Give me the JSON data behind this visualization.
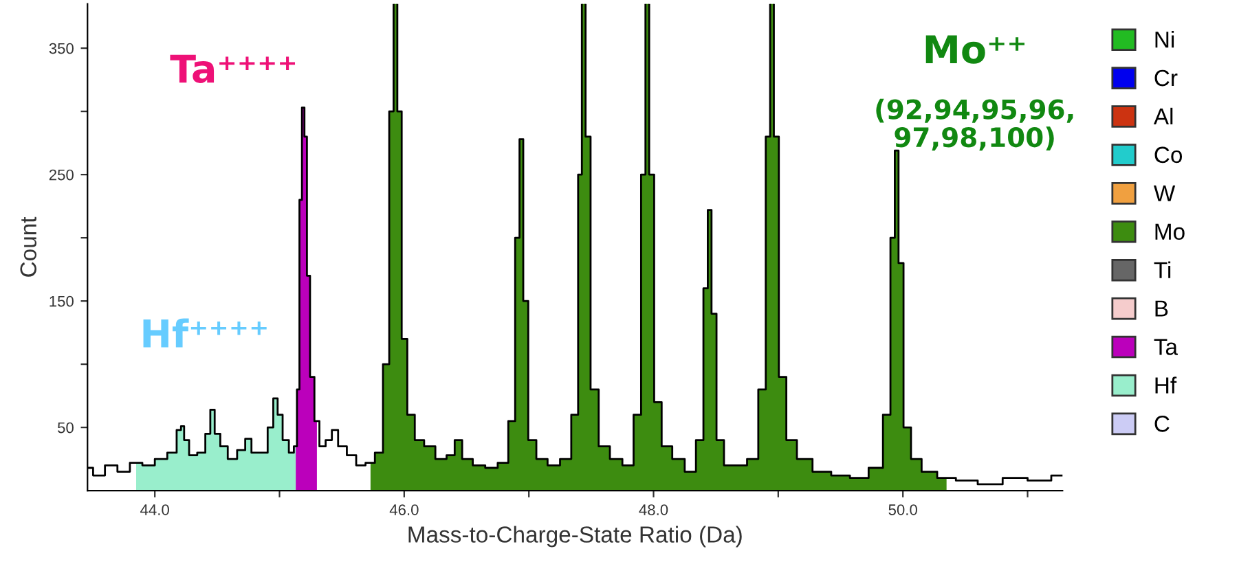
{
  "chart_data": {
    "type": "step",
    "xlabel": "Mass-to-Charge-State Ratio (Da)",
    "ylabel": "Count",
    "xlim": [
      43.46,
      51.28
    ],
    "xticks": [
      {
        "value": 44,
        "label": "44.0"
      },
      {
        "value": 45,
        "label": null
      },
      {
        "value": 46,
        "label": "46.0"
      },
      {
        "value": 47,
        "label": null
      },
      {
        "value": 48,
        "label": "48.0"
      },
      {
        "value": 49,
        "label": null
      },
      {
        "value": 50,
        "label": "50.0"
      },
      {
        "value": 51,
        "label": null
      }
    ],
    "ylim": [
      0,
      385
    ],
    "yticks": [
      50,
      {
        "value": 100,
        "label": null
      },
      150,
      {
        "value": 200,
        "label": null
      },
      250,
      {
        "value": 300,
        "label": null
      },
      350
    ],
    "grid": false,
    "legend": "right",
    "annotations": [
      "Ta⁺⁺⁺⁺",
      "Hf⁺⁺⁺⁺",
      "Mo⁺⁺",
      "(92,94,95,96,\n97,98,100)"
    ],
    "series": [
      {
        "color": "#000000",
        "x": [
          43.46,
          43.55,
          43.65,
          43.75,
          43.85,
          43.95,
          44.05,
          44.15,
          44.2,
          44.22,
          44.25,
          44.3,
          44.38,
          44.43,
          44.46,
          44.5,
          44.55,
          44.62,
          44.7,
          44.75,
          44.8,
          44.88,
          44.93,
          44.97,
          45.0,
          45.05,
          45.1,
          45.13,
          45.15,
          45.17,
          45.19,
          45.21,
          45.23,
          45.26,
          45.3,
          45.34,
          45.4,
          45.44,
          45.5,
          45.58,
          45.65,
          45.73,
          45.8,
          45.86,
          45.9,
          45.93,
          45.96,
          46.0,
          46.05,
          46.12,
          46.2,
          46.3,
          46.38,
          46.43,
          46.5,
          46.6,
          46.7,
          46.8,
          46.87,
          46.91,
          46.94,
          46.97,
          47.02,
          47.1,
          47.2,
          47.3,
          47.38,
          47.41,
          47.44,
          47.47,
          47.52,
          47.6,
          47.7,
          47.8,
          47.88,
          47.92,
          47.95,
          47.98,
          48.03,
          48.1,
          48.2,
          48.3,
          48.38,
          48.42,
          48.45,
          48.48,
          48.53,
          48.6,
          48.7,
          48.8,
          48.88,
          48.92,
          48.95,
          48.98,
          49.03,
          49.1,
          49.2,
          49.35,
          49.5,
          49.65,
          49.8,
          49.88,
          49.92,
          49.95,
          49.98,
          50.03,
          50.1,
          50.2,
          50.35,
          50.5,
          50.7,
          50.9,
          51.1,
          51.28
        ],
        "values": [
          18,
          12,
          20,
          15,
          22,
          20,
          25,
          30,
          48,
          51,
          40,
          28,
          30,
          45,
          64,
          45,
          35,
          25,
          32,
          41,
          30,
          30,
          50,
          73,
          60,
          40,
          30,
          35,
          80,
          230,
          303,
          280,
          170,
          90,
          55,
          35,
          40,
          48,
          35,
          28,
          20,
          22,
          30,
          100,
          300,
          null,
          300,
          120,
          60,
          40,
          35,
          25,
          28,
          40,
          25,
          20,
          18,
          22,
          55,
          200,
          278,
          150,
          40,
          25,
          20,
          25,
          60,
          250,
          null,
          280,
          80,
          35,
          25,
          20,
          60,
          250,
          null,
          250,
          70,
          35,
          25,
          15,
          40,
          160,
          222,
          140,
          40,
          20,
          20,
          25,
          80,
          280,
          null,
          280,
          90,
          40,
          25,
          15,
          12,
          10,
          18,
          60,
          200,
          269,
          180,
          50,
          25,
          15,
          10,
          8,
          5,
          10,
          8,
          12
        ]
      },
      {
        "name": "Ni",
        "type": "area",
        "color": "#22bb22"
      },
      {
        "name": "Cr",
        "type": "area",
        "color": "#0000ee"
      },
      {
        "name": "Al",
        "type": "area",
        "color": "#cc3311"
      },
      {
        "name": "Co",
        "type": "area",
        "color": "#22cccc"
      },
      {
        "name": "W",
        "type": "area",
        "color": "#f0a040"
      },
      {
        "name": "Mo",
        "type": "area",
        "color": "#3d8c10",
        "x": [
          45.73,
          45.8,
          45.86,
          45.9,
          45.93,
          45.96,
          46.0,
          46.05,
          46.12,
          46.2,
          46.3,
          46.38,
          46.43,
          46.5,
          46.6,
          46.7,
          46.8,
          46.87,
          46.91,
          46.94,
          46.97,
          47.02,
          47.1,
          47.2,
          47.3,
          47.38,
          47.41,
          47.44,
          47.47,
          47.52,
          47.6,
          47.7,
          47.8,
          47.88,
          47.92,
          47.95,
          47.98,
          48.03,
          48.1,
          48.2,
          48.3,
          48.38,
          48.42,
          48.45,
          48.48,
          48.53,
          48.6,
          48.7,
          48.8,
          48.88,
          48.92,
          48.95,
          48.98,
          49.03,
          49.1,
          49.2,
          49.35,
          49.5,
          49.65,
          49.8,
          49.88,
          49.92,
          49.95,
          49.98,
          50.03,
          50.1,
          50.2,
          50.35
        ],
        "values": [
          22,
          30,
          100,
          300,
          null,
          300,
          120,
          60,
          40,
          35,
          25,
          28,
          40,
          25,
          20,
          18,
          22,
          55,
          200,
          278,
          150,
          40,
          25,
          20,
          25,
          60,
          250,
          null,
          280,
          80,
          35,
          25,
          20,
          60,
          250,
          null,
          250,
          70,
          35,
          25,
          15,
          40,
          160,
          222,
          140,
          40,
          20,
          20,
          25,
          80,
          280,
          null,
          280,
          90,
          40,
          25,
          15,
          12,
          10,
          18,
          60,
          200,
          269,
          180,
          50,
          25,
          15,
          10
        ]
      },
      {
        "name": "Ti",
        "type": "area",
        "color": "#666666"
      },
      {
        "name": "B",
        "type": "area",
        "color": "#f5cccc"
      },
      {
        "name": "Ta",
        "type": "area",
        "color": "#bb00bb",
        "x": [
          45.13,
          45.15,
          45.17,
          45.19,
          45.21,
          45.23,
          45.26,
          45.3
        ],
        "values": [
          35,
          80,
          230,
          303,
          280,
          170,
          90,
          55
        ]
      },
      {
        "name": "Hf",
        "type": "area",
        "color": "#99eecc",
        "x": [
          43.85,
          43.95,
          44.05,
          44.15,
          44.2,
          44.22,
          44.25,
          44.3,
          44.38,
          44.43,
          44.46,
          44.5,
          44.55,
          44.62,
          44.7,
          44.75,
          44.8,
          44.88,
          44.93,
          44.97,
          45.0,
          45.05,
          45.1,
          45.13
        ],
        "values": [
          22,
          20,
          25,
          30,
          48,
          51,
          40,
          28,
          30,
          45,
          64,
          45,
          35,
          25,
          32,
          41,
          30,
          30,
          50,
          73,
          60,
          40,
          30,
          35
        ]
      },
      {
        "name": "C",
        "type": "area",
        "color": "#ccccf5"
      }
    ]
  }
}
